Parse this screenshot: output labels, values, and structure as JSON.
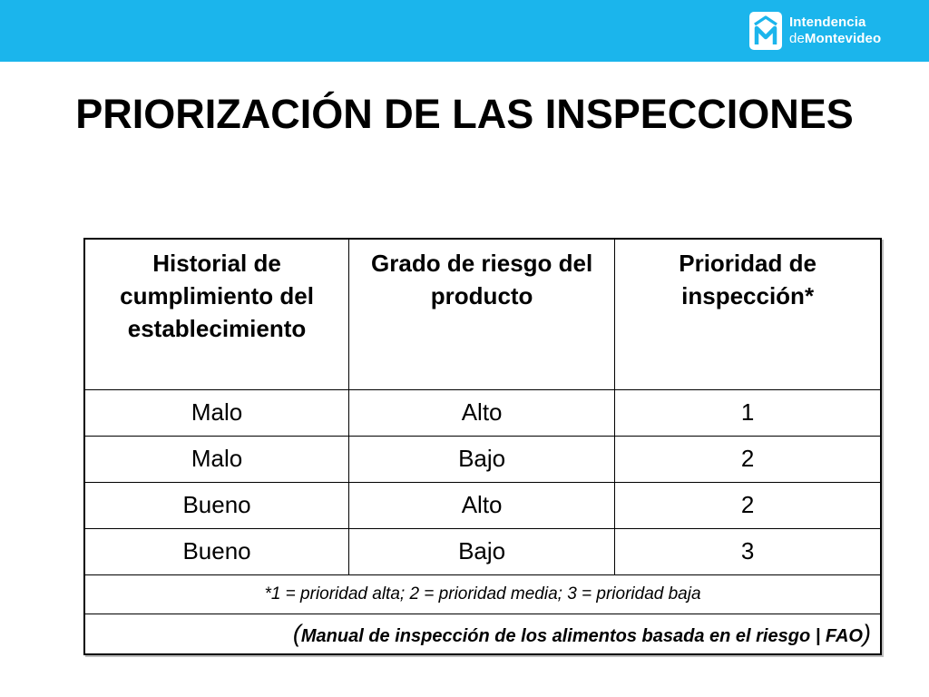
{
  "header": {
    "bar_color": "#1bb5ec",
    "logo": {
      "icon": "intendencia-m-icon",
      "line1": "Intendencia",
      "line2_prefix": "de",
      "line2_bold": "Montevideo"
    }
  },
  "title": "PRIORIZACIÓN DE LAS INSPECCIONES",
  "table": {
    "headers": [
      "Historial de cumplimiento del establecimiento",
      "Grado de riesgo del producto",
      "Prioridad de inspección*"
    ],
    "rows": [
      [
        "Malo",
        "Alto",
        "1"
      ],
      [
        "Malo",
        "Bajo",
        "2"
      ],
      [
        "Bueno",
        "Alto",
        "2"
      ],
      [
        "Bueno",
        "Bajo",
        "3"
      ]
    ],
    "footnote": "*1 = prioridad alta; 2 = prioridad media; 3 = prioridad baja",
    "source": {
      "open": "(",
      "text": "Manual de inspección de los alimentos basada en el riesgo | FAO",
      "close": ")"
    }
  }
}
